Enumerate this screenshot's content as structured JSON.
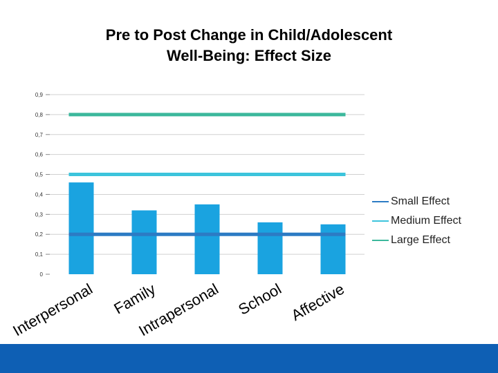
{
  "chart_data": {
    "type": "bar",
    "title": [
      "Pre to Post Change in Child/Adolescent",
      "Well-Being: Effect Size"
    ],
    "categories": [
      "Interpersonal",
      "Family",
      "Intrapersonal",
      "School",
      "Affective"
    ],
    "values": [
      0.46,
      0.32,
      0.35,
      0.26,
      0.25
    ],
    "ylim": [
      0,
      0.9
    ],
    "yticks": [
      "0",
      "0,1",
      "0,2",
      "0,3",
      "0,4",
      "0,5",
      "0,6",
      "0,7",
      "0,8",
      "0,9"
    ],
    "grid": true,
    "bar_color": "#1aa3e0",
    "reference_lines": [
      {
        "name": "Small Effect",
        "value": 0.2,
        "color": "#2c7bc4"
      },
      {
        "name": "Medium Effect",
        "value": 0.5,
        "color": "#3cc4dc"
      },
      {
        "name": "Large Effect",
        "value": 0.8,
        "color": "#3cb89c"
      }
    ],
    "legend_position": "right"
  },
  "theme": {
    "footer_color": "#0e5fb4",
    "grid_color": "#d0d0d0"
  }
}
